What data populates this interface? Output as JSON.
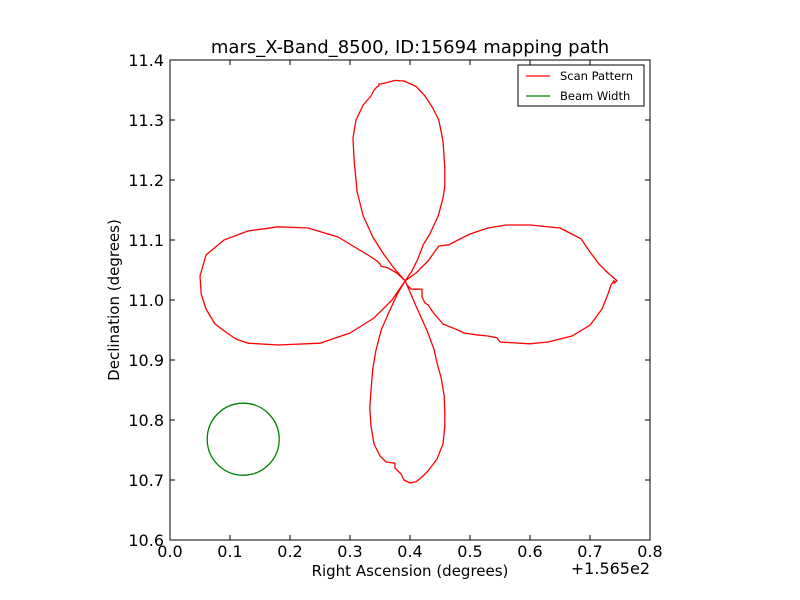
{
  "chart_data": {
    "type": "line",
    "title": "mars_X-Band_8500, ID:15694 mapping path",
    "xlabel": "Right Ascension (degrees)",
    "ylabel": "Declination (degrees)",
    "x_offset_label": "+1.565e2",
    "xlim": [
      0.0,
      0.8
    ],
    "ylim": [
      10.6,
      11.4
    ],
    "x_ticks": [
      "0.0",
      "0.1",
      "0.2",
      "0.3",
      "0.4",
      "0.5",
      "0.6",
      "0.7",
      "0.8"
    ],
    "y_ticks": [
      "10.6",
      "10.7",
      "10.8",
      "10.9",
      "11.0",
      "11.1",
      "11.2",
      "11.3",
      "11.4"
    ],
    "grid": false,
    "legend": {
      "placement": "top-right",
      "entries": [
        {
          "label": "Scan Pattern",
          "color": "#ff0000"
        },
        {
          "label": "Beam Width",
          "color": "#008000"
        }
      ]
    },
    "series": [
      {
        "name": "Scan Pattern",
        "color": "#ff0000",
        "points": [
          [
            0.392,
            11.032
          ],
          [
            0.375,
            11.051
          ],
          [
            0.357,
            11.075
          ],
          [
            0.338,
            11.105
          ],
          [
            0.322,
            11.14
          ],
          [
            0.312,
            11.18
          ],
          [
            0.307,
            11.23
          ],
          [
            0.305,
            11.27
          ],
          [
            0.31,
            11.3
          ],
          [
            0.322,
            11.325
          ],
          [
            0.335,
            11.34
          ],
          [
            0.34,
            11.35
          ],
          [
            0.345,
            11.355
          ],
          [
            0.348,
            11.357
          ],
          [
            0.348,
            11.36
          ],
          [
            0.352,
            11.36
          ],
          [
            0.36,
            11.362
          ],
          [
            0.375,
            11.366
          ],
          [
            0.39,
            11.365
          ],
          [
            0.41,
            11.356
          ],
          [
            0.425,
            11.34
          ],
          [
            0.438,
            11.32
          ],
          [
            0.448,
            11.3
          ],
          [
            0.455,
            11.265
          ],
          [
            0.458,
            11.22
          ],
          [
            0.458,
            11.19
          ],
          [
            0.455,
            11.17
          ],
          [
            0.447,
            11.14
          ],
          [
            0.433,
            11.11
          ],
          [
            0.427,
            11.1
          ],
          [
            0.422,
            11.092
          ],
          [
            0.413,
            11.068
          ],
          [
            0.403,
            11.048
          ],
          [
            0.392,
            11.032
          ],
          [
            0.378,
            11.045
          ],
          [
            0.362,
            11.054
          ],
          [
            0.352,
            11.056
          ],
          [
            0.35,
            11.06
          ],
          [
            0.345,
            11.065
          ],
          [
            0.33,
            11.075
          ],
          [
            0.305,
            11.09
          ],
          [
            0.28,
            11.105
          ],
          [
            0.23,
            11.12
          ],
          [
            0.18,
            11.122
          ],
          [
            0.13,
            11.115
          ],
          [
            0.09,
            11.1
          ],
          [
            0.06,
            11.075
          ],
          [
            0.05,
            11.04
          ],
          [
            0.052,
            11.01
          ],
          [
            0.06,
            10.985
          ],
          [
            0.075,
            10.96
          ],
          [
            0.095,
            10.945
          ],
          [
            0.11,
            10.935
          ],
          [
            0.13,
            10.928
          ],
          [
            0.18,
            10.925
          ],
          [
            0.25,
            10.928
          ],
          [
            0.3,
            10.945
          ],
          [
            0.34,
            10.97
          ],
          [
            0.37,
            11.0
          ],
          [
            0.392,
            11.032
          ],
          [
            0.41,
            11.045
          ],
          [
            0.43,
            11.065
          ],
          [
            0.448,
            11.09
          ],
          [
            0.465,
            11.092
          ],
          [
            0.48,
            11.1
          ],
          [
            0.5,
            11.11
          ],
          [
            0.53,
            11.12
          ],
          [
            0.56,
            11.125
          ],
          [
            0.6,
            11.125
          ],
          [
            0.65,
            11.12
          ],
          [
            0.685,
            11.102
          ],
          [
            0.7,
            11.08
          ],
          [
            0.715,
            11.06
          ],
          [
            0.73,
            11.045
          ],
          [
            0.745,
            11.032
          ],
          [
            0.74,
            11.028
          ],
          [
            0.742,
            11.03
          ],
          [
            0.74,
            11.032
          ],
          [
            0.735,
            11.025
          ],
          [
            0.73,
            11.01
          ],
          [
            0.72,
            10.985
          ],
          [
            0.7,
            10.958
          ],
          [
            0.67,
            10.94
          ],
          [
            0.63,
            10.93
          ],
          [
            0.6,
            10.927
          ],
          [
            0.55,
            10.93
          ],
          [
            0.545,
            10.937
          ],
          [
            0.53,
            10.94
          ],
          [
            0.51,
            10.942
          ],
          [
            0.49,
            10.945
          ],
          [
            0.475,
            10.952
          ],
          [
            0.455,
            10.96
          ],
          [
            0.438,
            10.98
          ],
          [
            0.43,
            10.992
          ],
          [
            0.425,
            10.995
          ],
          [
            0.42,
            11.005
          ],
          [
            0.42,
            11.018
          ],
          [
            0.41,
            11.018
          ],
          [
            0.402,
            11.018
          ],
          [
            0.395,
            11.025
          ],
          [
            0.392,
            11.032
          ],
          [
            0.38,
            11.012
          ],
          [
            0.365,
            10.98
          ],
          [
            0.352,
            10.95
          ],
          [
            0.343,
            10.915
          ],
          [
            0.338,
            10.885
          ],
          [
            0.335,
            10.85
          ],
          [
            0.333,
            10.82
          ],
          [
            0.335,
            10.79
          ],
          [
            0.34,
            10.76
          ],
          [
            0.35,
            10.74
          ],
          [
            0.36,
            10.73
          ],
          [
            0.375,
            10.728
          ],
          [
            0.375,
            10.72
          ],
          [
            0.385,
            10.71
          ],
          [
            0.39,
            10.7
          ],
          [
            0.4,
            10.695
          ],
          [
            0.41,
            10.697
          ],
          [
            0.42,
            10.705
          ],
          [
            0.43,
            10.715
          ],
          [
            0.445,
            10.735
          ],
          [
            0.455,
            10.76
          ],
          [
            0.458,
            10.79
          ],
          [
            0.458,
            10.81
          ],
          [
            0.457,
            10.84
          ],
          [
            0.452,
            10.87
          ],
          [
            0.445,
            10.895
          ],
          [
            0.44,
            10.918
          ],
          [
            0.428,
            10.95
          ],
          [
            0.41,
            10.99
          ],
          [
            0.392,
            11.032
          ]
        ]
      },
      {
        "name": "Beam Width",
        "color": "#008000",
        "shape": "circle",
        "center": [
          0.122,
          10.768
        ],
        "radius": 0.06
      }
    ]
  }
}
